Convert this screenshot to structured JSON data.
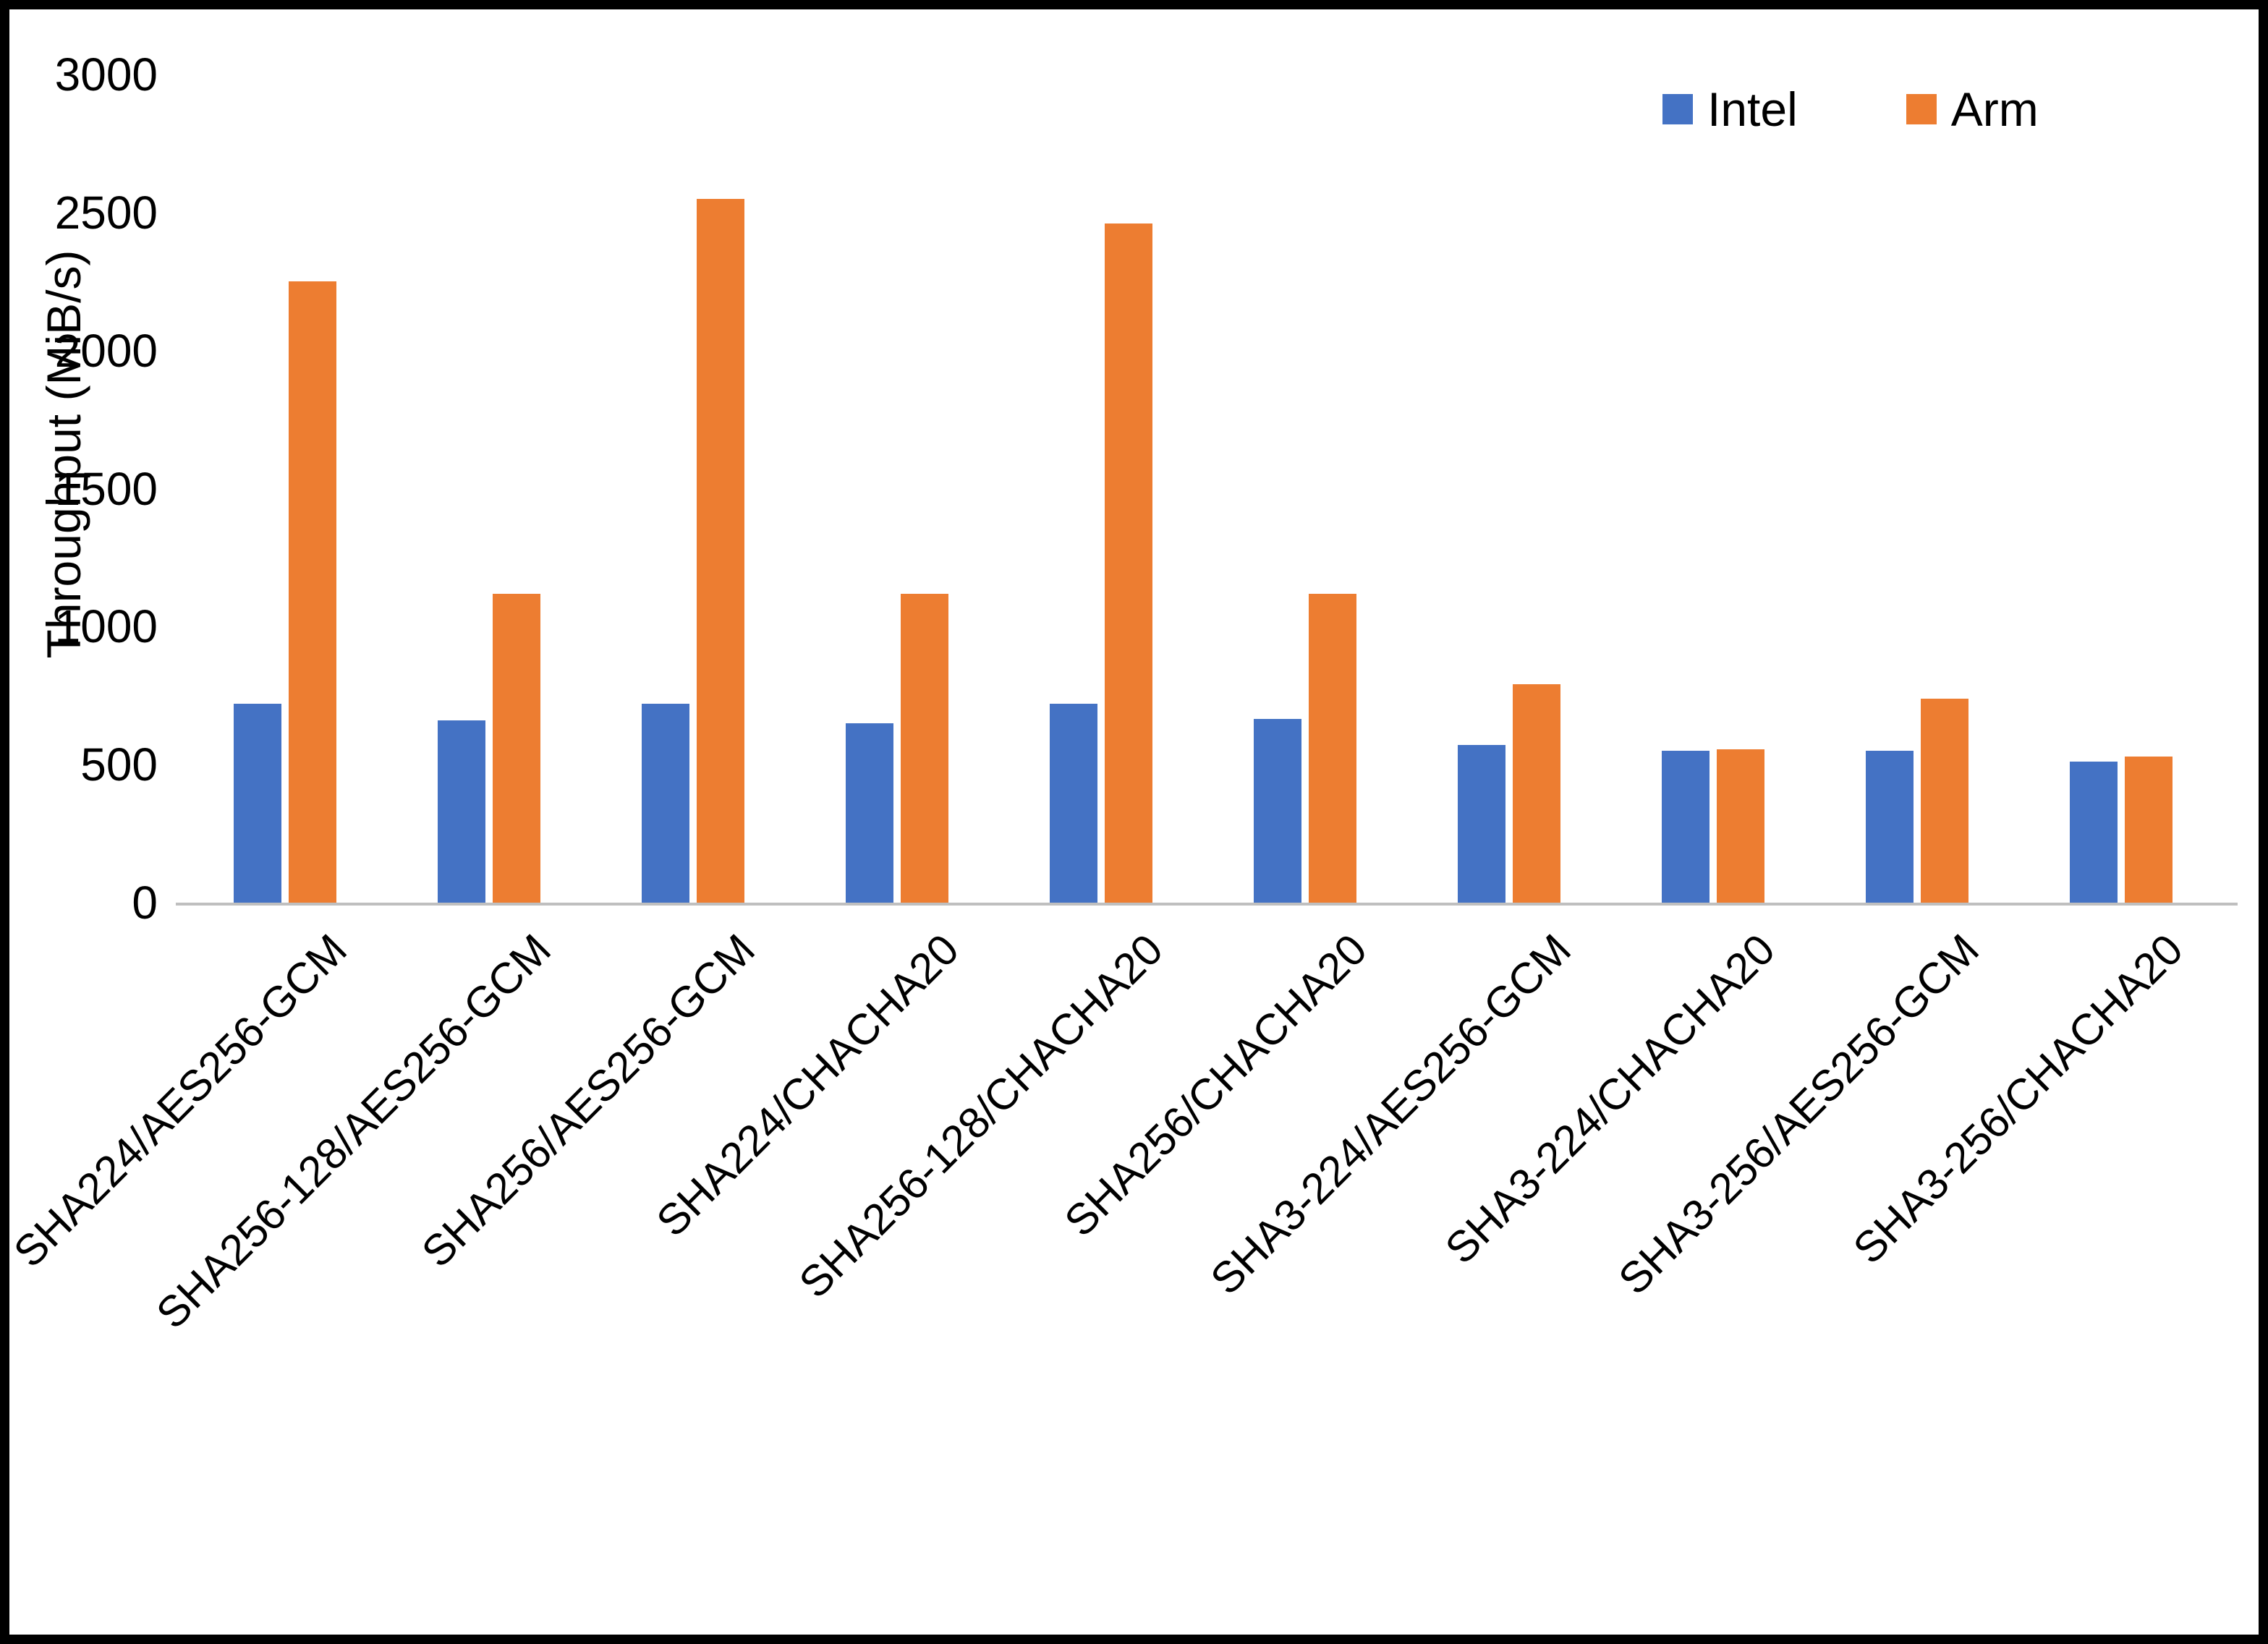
{
  "chart_data": {
    "type": "bar",
    "title": "",
    "xlabel": "",
    "ylabel": "Throughput (MiB/s)",
    "ylim": [
      0,
      3000
    ],
    "ytick_step": 500,
    "grid": false,
    "legend_position": "top-right",
    "categories": [
      "SHA224/AES256-GCM",
      "SHA256-128/AES256-GCM",
      "SHA256/AES256-GCM",
      "SHA224/CHACHA20",
      "SHA256-128/CHACHA20",
      "SHA256/CHACHA20",
      "SHA3-224/AES256-GCM",
      "SHA3-224/CHACHA20",
      "SHA3-256/AES256-GCM",
      "SHA3-256/CHACHA20"
    ],
    "series": [
      {
        "name": "Intel",
        "color": "#4472C4",
        "values": [
          720,
          660,
          720,
          650,
          720,
          665,
          570,
          550,
          550,
          510
        ]
      },
      {
        "name": "Arm",
        "color": "#ED7D31",
        "values": [
          2250,
          1120,
          2550,
          1120,
          2460,
          1120,
          790,
          555,
          740,
          530
        ]
      }
    ]
  }
}
